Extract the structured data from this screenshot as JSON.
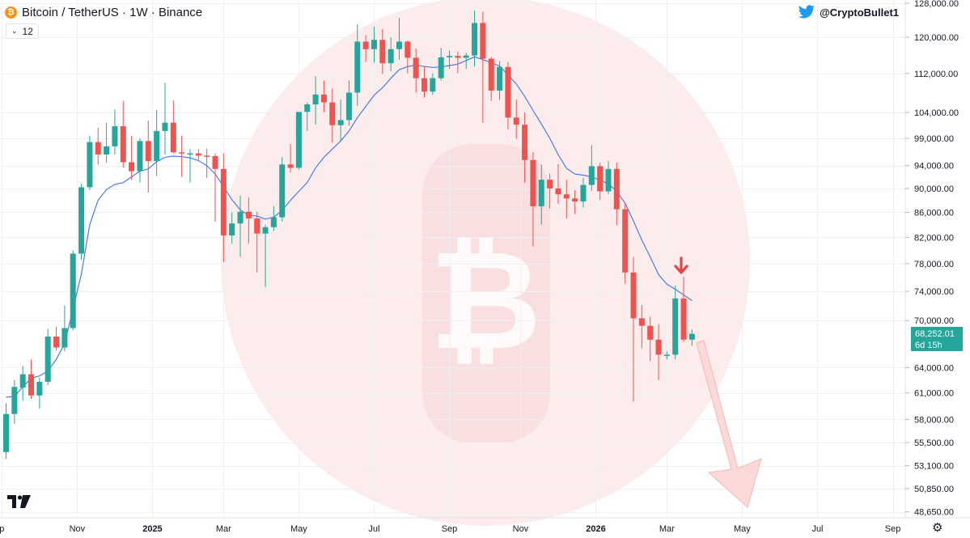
{
  "header": {
    "title": "Bitcoin / TetherUS · 1W · Binance",
    "indicator_value": "12",
    "handle": "@CryptoBullet1"
  },
  "price_badge": {
    "price": "68,252.01",
    "countdown": "6d 15h"
  },
  "colors": {
    "up": "#26a69a",
    "down": "#ef5350",
    "ma": "#4a7ae8",
    "arrow": "#e8414a"
  },
  "chart_data": {
    "type": "candlestick",
    "ylim": [
      48000,
      128000
    ],
    "y_ticks": [
      {
        "v": 128000,
        "label": "128,000.00"
      },
      {
        "v": 120000,
        "label": "120,000.00"
      },
      {
        "v": 112000,
        "label": "112,000.00"
      },
      {
        "v": 104000,
        "label": "104,000.00"
      },
      {
        "v": 99000,
        "label": "99,000.00"
      },
      {
        "v": 94000,
        "label": "94,000.00"
      },
      {
        "v": 90000,
        "label": "90,000.00"
      },
      {
        "v": 86000,
        "label": "86,000.00"
      },
      {
        "v": 82000,
        "label": "82,000.00"
      },
      {
        "v": 78000,
        "label": "78,000.00"
      },
      {
        "v": 74000,
        "label": "74,000.00"
      },
      {
        "v": 70000,
        "label": "70,000.00"
      },
      {
        "v": 64000,
        "label": "64,000.00"
      },
      {
        "v": 61000,
        "label": "61,000.00"
      },
      {
        "v": 58000,
        "label": "58,000.00"
      },
      {
        "v": 55500,
        "label": "55,500.00"
      },
      {
        "v": 53100,
        "label": "53,100.00"
      },
      {
        "v": 50850,
        "label": "50,850.00"
      },
      {
        "v": 48650,
        "label": "48,650.00"
      }
    ],
    "x_ticks": [
      {
        "i": -0.5,
        "label": "p",
        "bold": false
      },
      {
        "i": 8.5,
        "label": "Nov",
        "bold": false
      },
      {
        "i": 17.5,
        "label": "2025",
        "bold": true
      },
      {
        "i": 26,
        "label": "Mar",
        "bold": false
      },
      {
        "i": 35,
        "label": "May",
        "bold": false
      },
      {
        "i": 44,
        "label": "Jul",
        "bold": false
      },
      {
        "i": 53,
        "label": "Sep",
        "bold": false
      },
      {
        "i": 61.5,
        "label": "Nov",
        "bold": false
      },
      {
        "i": 70.5,
        "label": "2026",
        "bold": true
      },
      {
        "i": 79,
        "label": "Mar",
        "bold": false
      },
      {
        "i": 88,
        "label": "May",
        "bold": false
      },
      {
        "i": 97,
        "label": "Jul",
        "bold": false
      },
      {
        "i": 106,
        "label": "Sep",
        "bold": false
      }
    ],
    "candles": [
      [
        54500,
        59800,
        53800,
        58600
      ],
      [
        58600,
        62500,
        57500,
        61700
      ],
      [
        61600,
        64200,
        60100,
        63200
      ],
      [
        63200,
        65000,
        60300,
        60700
      ],
      [
        60700,
        62800,
        59200,
        62300
      ],
      [
        62300,
        68900,
        61900,
        67900
      ],
      [
        67900,
        69200,
        66100,
        66500
      ],
      [
        66500,
        72000,
        66000,
        69000
      ],
      [
        69000,
        80000,
        68700,
        79500
      ],
      [
        79500,
        90800,
        78600,
        90200
      ],
      [
        90200,
        99500,
        89700,
        98300
      ],
      [
        98300,
        101000,
        94200,
        96000
      ],
      [
        96000,
        102000,
        94500,
        97500
      ],
      [
        97500,
        104600,
        96000,
        101300
      ],
      [
        101300,
        106300,
        93600,
        94600
      ],
      [
        94600,
        99500,
        91500,
        93000
      ],
      [
        93000,
        99000,
        91000,
        98500
      ],
      [
        98500,
        102400,
        89300,
        94800
      ],
      [
        94800,
        104500,
        92200,
        100400
      ],
      [
        100400,
        110000,
        96000,
        102000
      ],
      [
        102000,
        106400,
        96200,
        96400
      ],
      [
        96400,
        99500,
        92000,
        96200
      ],
      [
        96200,
        97000,
        91000,
        96200
      ],
      [
        96200,
        97000,
        94800,
        95800
      ],
      [
        95800,
        97100,
        91800,
        95700
      ],
      [
        95700,
        96200,
        84500,
        93400
      ],
      [
        93400,
        96200,
        78200,
        82300
      ],
      [
        82300,
        86000,
        81000,
        84200
      ],
      [
        84200,
        88800,
        79000,
        86100
      ],
      [
        86100,
        88500,
        81000,
        85000
      ],
      [
        85000,
        86100,
        76700,
        82600
      ],
      [
        82600,
        84000,
        74600,
        83600
      ],
      [
        83600,
        87000,
        83000,
        85200
      ],
      [
        85200,
        95500,
        84500,
        94200
      ],
      [
        94200,
        97900,
        92800,
        93600
      ],
      [
        93600,
        103500,
        93300,
        104100
      ],
      [
        104100,
        106000,
        100400,
        105600
      ],
      [
        105600,
        111400,
        101600,
        107600
      ],
      [
        107600,
        110500,
        104000,
        106000
      ],
      [
        106000,
        108800,
        98200,
        101500
      ],
      [
        101500,
        106600,
        98500,
        102500
      ],
      [
        102500,
        110500,
        101400,
        108000
      ],
      [
        108000,
        123000,
        105300,
        119000
      ],
      [
        119000,
        120500,
        114500,
        117300
      ],
      [
        117300,
        122400,
        114300,
        119400
      ],
      [
        119400,
        121900,
        111900,
        114200
      ],
      [
        114200,
        120000,
        112500,
        117300
      ],
      [
        117300,
        124500,
        115000,
        119000
      ],
      [
        119000,
        119200,
        112000,
        115400
      ],
      [
        115400,
        117500,
        108000,
        111000
      ],
      [
        111000,
        113500,
        107000,
        108200
      ],
      [
        108200,
        112000,
        107600,
        111000
      ],
      [
        111000,
        117600,
        110500,
        115500
      ],
      [
        115500,
        117000,
        113000,
        115800
      ],
      [
        115800,
        116800,
        112000,
        115400
      ],
      [
        115400,
        116500,
        113000,
        115900
      ],
      [
        115900,
        126200,
        113500,
        123300
      ],
      [
        123300,
        126000,
        102000,
        115200
      ],
      [
        115200,
        115600,
        106300,
        108400
      ],
      [
        108400,
        114700,
        106500,
        113400
      ],
      [
        113400,
        114500,
        100700,
        103000
      ],
      [
        103000,
        106600,
        98900,
        101600
      ],
      [
        101600,
        104000,
        91000,
        95000
      ],
      [
        95000,
        96500,
        80600,
        87000
      ],
      [
        87000,
        94200,
        84000,
        91500
      ],
      [
        91500,
        92600,
        86600,
        90000
      ],
      [
        90000,
        94300,
        87400,
        89000
      ],
      [
        89000,
        91500,
        85000,
        88300
      ],
      [
        88300,
        89700,
        85700,
        87800
      ],
      [
        87800,
        91800,
        86800,
        90600
      ],
      [
        90600,
        97700,
        89600,
        93900
      ],
      [
        93900,
        94500,
        88000,
        89500
      ],
      [
        89500,
        94800,
        89000,
        93400
      ],
      [
        93400,
        94500,
        83900,
        86500
      ],
      [
        86500,
        87500,
        75100,
        76700
      ],
      [
        76700,
        79000,
        60000,
        70300
      ],
      [
        70300,
        72100,
        66400,
        69300
      ],
      [
        69300,
        70500,
        64800,
        67500
      ],
      [
        67500,
        69500,
        62500,
        65600
      ],
      [
        65500,
        66000,
        65000,
        65600
      ],
      [
        65600,
        74800,
        65000,
        73000
      ],
      [
        73000,
        76100,
        67200,
        67500
      ],
      [
        67500,
        68800,
        66700,
        68252
      ]
    ],
    "ma_period": 12,
    "ma_label": "12",
    "ma_values": [
      [
        0,
        60500
      ],
      [
        1,
        60600
      ],
      [
        2,
        61700
      ],
      [
        3,
        62700
      ],
      [
        4,
        63000
      ],
      [
        5,
        63600
      ],
      [
        6,
        65000
      ],
      [
        7,
        67000
      ],
      [
        8,
        71500
      ],
      [
        9,
        76500
      ],
      [
        10,
        84000
      ],
      [
        11,
        88000
      ],
      [
        12,
        89800
      ],
      [
        13,
        90700
      ],
      [
        14,
        91000
      ],
      [
        15,
        92000
      ],
      [
        16,
        93000
      ],
      [
        17,
        93400
      ],
      [
        18,
        94700
      ],
      [
        19,
        95500
      ],
      [
        20,
        95700
      ],
      [
        21,
        95600
      ],
      [
        22,
        95400
      ],
      [
        23,
        94900
      ],
      [
        24,
        94000
      ],
      [
        25,
        92500
      ],
      [
        26,
        90300
      ],
      [
        27,
        88100
      ],
      [
        28,
        86400
      ],
      [
        29,
        85500
      ],
      [
        30,
        85400
      ],
      [
        31,
        84900
      ],
      [
        32,
        85200
      ],
      [
        33,
        86300
      ],
      [
        34,
        88000
      ],
      [
        35,
        89500
      ],
      [
        36,
        91000
      ],
      [
        37,
        93600
      ],
      [
        38,
        95500
      ],
      [
        39,
        97000
      ],
      [
        40,
        98500
      ],
      [
        41,
        100400
      ],
      [
        42,
        103000
      ],
      [
        43,
        105200
      ],
      [
        44,
        107500
      ],
      [
        45,
        109000
      ],
      [
        46,
        111000
      ],
      [
        47,
        112800
      ],
      [
        48,
        113500
      ],
      [
        49,
        113800
      ],
      [
        50,
        113500
      ],
      [
        51,
        113300
      ],
      [
        52,
        113400
      ],
      [
        53,
        113700
      ],
      [
        54,
        114000
      ],
      [
        55,
        114800
      ],
      [
        56,
        115600
      ],
      [
        57,
        115000
      ],
      [
        58,
        114300
      ],
      [
        59,
        113600
      ],
      [
        60,
        111700
      ],
      [
        61,
        109800
      ],
      [
        62,
        107200
      ],
      [
        63,
        104400
      ],
      [
        64,
        101700
      ],
      [
        65,
        99000
      ],
      [
        66,
        96000
      ],
      [
        67,
        93500
      ],
      [
        68,
        92500
      ],
      [
        69,
        92300
      ],
      [
        70,
        92000
      ],
      [
        71,
        91400
      ],
      [
        72,
        90800
      ],
      [
        73,
        89500
      ],
      [
        74,
        87500
      ],
      [
        75,
        84600
      ],
      [
        76,
        81600
      ],
      [
        77,
        79000
      ],
      [
        78,
        76400
      ],
      [
        79,
        75000
      ],
      [
        80,
        74300
      ],
      [
        81,
        73500
      ],
      [
        82,
        72700
      ]
    ]
  }
}
